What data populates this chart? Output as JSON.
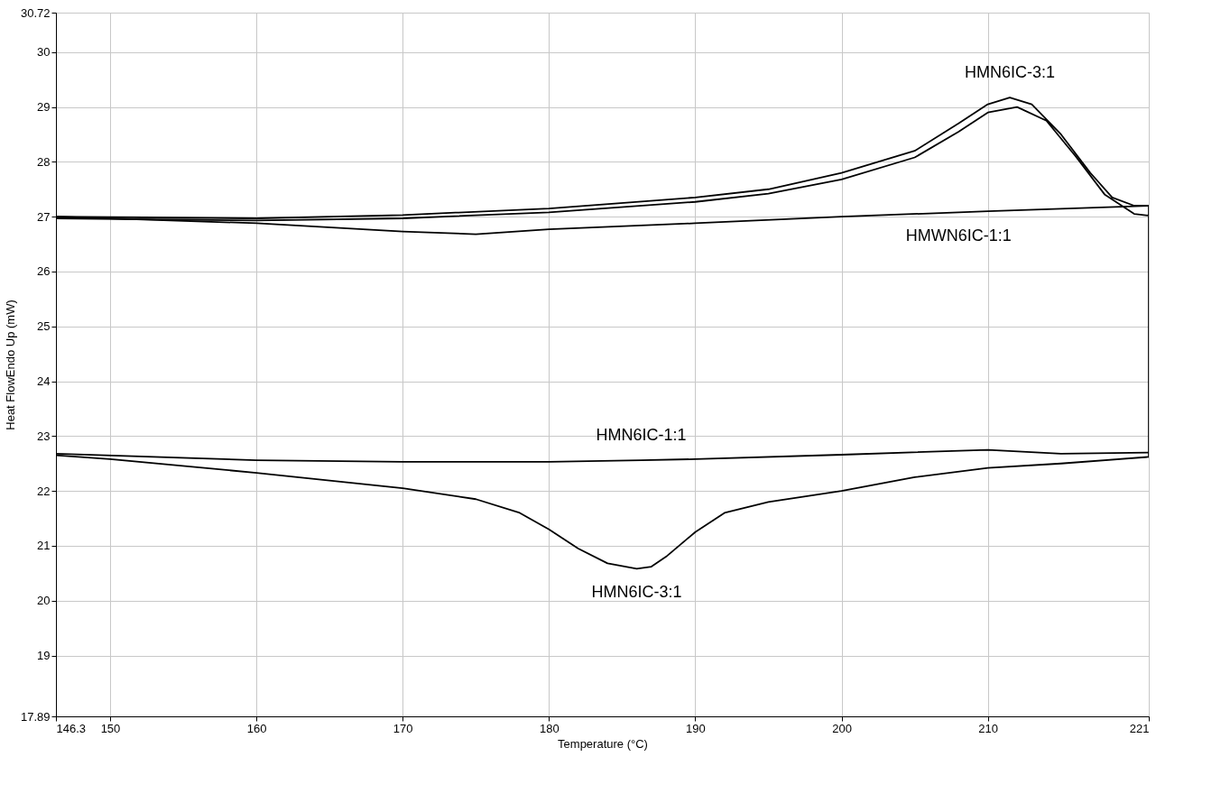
{
  "chart_data": {
    "type": "line",
    "xlabel": "Temperature (°C)",
    "ylabel": "Heat FlowEndo Up (mW)",
    "xlim": [
      146.3,
      221
    ],
    "ylim": [
      17.89,
      30.72
    ],
    "xticks": [
      146.3,
      150,
      160,
      170,
      180,
      190,
      200,
      210,
      221
    ],
    "yticks": [
      17.89,
      19,
      20,
      21,
      22,
      23,
      24,
      25,
      26,
      27,
      28,
      29,
      30,
      30.72
    ],
    "grid": true,
    "marker": "none",
    "line_style": "solid",
    "series": [
      {
        "color": "#000000",
        "x": [
          146.3,
          160,
          170,
          180,
          190,
          195,
          200,
          205,
          208,
          210,
          211.5,
          213,
          215,
          217,
          218.5,
          220,
          221,
          221,
          220,
          218,
          216,
          214,
          212,
          210,
          208,
          205,
          200,
          195,
          190,
          180,
          170,
          160,
          146.3
        ],
        "values": [
          27.0,
          26.97,
          27.03,
          27.15,
          27.35,
          27.5,
          27.8,
          28.2,
          28.7,
          29.05,
          29.17,
          29.05,
          28.5,
          27.8,
          27.35,
          27.2,
          27.2,
          27.02,
          27.05,
          27.4,
          28.1,
          28.75,
          29.0,
          28.9,
          28.55,
          28.08,
          27.68,
          27.42,
          27.27,
          27.08,
          26.97,
          26.93,
          26.97
        ]
      },
      {
        "color": "#000000",
        "x": [
          146.3,
          160,
          170,
          175,
          180,
          190,
          200,
          208,
          210,
          221
        ],
        "values": [
          27.0,
          26.88,
          26.73,
          26.68,
          26.77,
          26.88,
          27.0,
          27.08,
          27.1,
          27.2
        ]
      },
      {
        "color": "#000000",
        "x": [
          221,
          221
        ],
        "values": [
          27.0,
          22.62
        ]
      },
      {
        "color": "#000000",
        "x": [
          146.3,
          160,
          170,
          180,
          186.3,
          190,
          200,
          210,
          215,
          221
        ],
        "values": [
          22.68,
          22.56,
          22.53,
          22.53,
          22.56,
          22.58,
          22.66,
          22.75,
          22.68,
          22.7
        ]
      },
      {
        "color": "#000000",
        "x": [
          146.3,
          150,
          160,
          170,
          175,
          178,
          180,
          182,
          184,
          186,
          187,
          188,
          190,
          192,
          195,
          200,
          205,
          210,
          215,
          221
        ],
        "values": [
          22.65,
          22.58,
          22.33,
          22.05,
          21.85,
          21.6,
          21.3,
          20.95,
          20.68,
          20.58,
          20.62,
          20.8,
          21.25,
          21.6,
          21.8,
          22.0,
          22.25,
          22.42,
          22.5,
          22.62
        ]
      }
    ],
    "annotations": [
      {
        "text": "HMN6IC-3:1",
        "x": 211.5,
        "y": 29.17
      },
      {
        "text": "HMWN6IC-1:1",
        "x": 208,
        "y": 27.08
      },
      {
        "text": "HMN6IC-1:1",
        "x": 186.3,
        "y": 22.56
      },
      {
        "text": "HMN6IC-3:1",
        "x": 186,
        "y": 20.58
      }
    ]
  }
}
